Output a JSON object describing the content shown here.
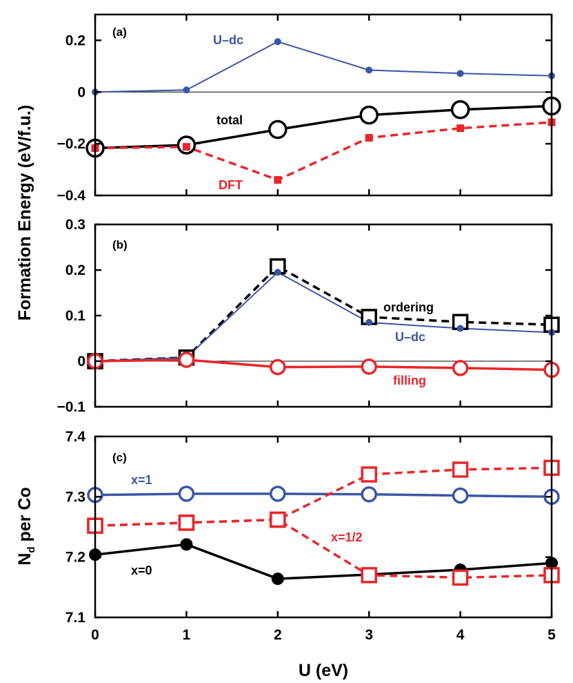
{
  "colors": {
    "blue": "#3b55a6",
    "red": "#e8262b",
    "black": "#000000"
  },
  "figure": {
    "ylabel_top": "Formation Energy (eV/f.u.)",
    "ylabel_bottom_main": "N",
    "ylabel_bottom_sub": "d",
    "ylabel_bottom_rest": " per Co",
    "xlabel": "U (eV)"
  },
  "chart_data": [
    {
      "panel": "(a)",
      "type": "line",
      "title": "",
      "xlabel": "U (eV)",
      "ylabel": "Formation Energy (eV/f.u.)",
      "xlim": [
        0,
        5
      ],
      "ylim": [
        -0.4,
        0.3
      ],
      "xticks": [
        "0",
        "1",
        "2",
        "3",
        "4",
        "5"
      ],
      "yticks": [
        "0.2",
        "0",
        "−0.2",
        "−0.4"
      ],
      "ytick_values": [
        0.2,
        0,
        -0.2,
        -0.4
      ],
      "zero_line": true,
      "x": [
        0,
        1,
        2,
        3,
        4,
        5
      ],
      "series": [
        {
          "name": "U–dc",
          "values": [
            0.0,
            0.008,
            0.195,
            0.085,
            0.072,
            0.063
          ],
          "color": "#3b55a6",
          "marker": "small-dot",
          "dash": "solid"
        },
        {
          "name": "total",
          "values": [
            -0.217,
            -0.205,
            -0.145,
            -0.089,
            -0.068,
            -0.054
          ],
          "color": "#000000",
          "marker": "open-circle",
          "dash": "solid"
        },
        {
          "name": "DFT",
          "values": [
            -0.217,
            -0.212,
            -0.34,
            -0.177,
            -0.14,
            -0.117
          ],
          "color": "#e8262b",
          "marker": "filled-square",
          "dash": "dashed"
        }
      ]
    },
    {
      "panel": "(b)",
      "type": "line",
      "title": "",
      "xlabel": "U (eV)",
      "ylabel": "Formation Energy (eV/f.u.)",
      "xlim": [
        0,
        5
      ],
      "ylim": [
        -0.1,
        0.3
      ],
      "xticks": [
        "0",
        "1",
        "2",
        "3",
        "4",
        "5"
      ],
      "yticks": [
        "0.3",
        "0.2",
        "0.1",
        "0",
        "−0.1"
      ],
      "ytick_values": [
        0.3,
        0.2,
        0.1,
        0,
        -0.1
      ],
      "zero_line": true,
      "x": [
        0,
        1,
        2,
        3,
        4,
        5
      ],
      "series": [
        {
          "name": "ordering",
          "values": [
            0.0,
            0.008,
            0.208,
            0.097,
            0.086,
            0.08
          ],
          "color": "#000000",
          "marker": "open-square",
          "dash": "dashed"
        },
        {
          "name": "U–dc",
          "values": [
            0.0,
            0.008,
            0.195,
            0.085,
            0.072,
            0.063
          ],
          "color": "#3b55a6",
          "marker": "small-dot",
          "dash": "solid"
        },
        {
          "name": "filling",
          "values": [
            0.0,
            0.003,
            -0.013,
            -0.012,
            -0.015,
            -0.019
          ],
          "color": "#e8262b",
          "marker": "open-circle",
          "dash": "solid"
        }
      ]
    },
    {
      "panel": "(c)",
      "type": "line",
      "title": "",
      "xlabel": "U (eV)",
      "ylabel": "N_d per Co",
      "xlim": [
        0,
        5
      ],
      "ylim": [
        7.1,
        7.4
      ],
      "xticks": [
        "0",
        "1",
        "2",
        "3",
        "4",
        "5"
      ],
      "yticks": [
        "7.4",
        "7.3",
        "7.2",
        "7.1"
      ],
      "ytick_values": [
        7.4,
        7.3,
        7.2,
        7.1
      ],
      "zero_line": false,
      "x": [
        0,
        1,
        2,
        3,
        4,
        5
      ],
      "series": [
        {
          "name": "x=1",
          "values": [
            7.303,
            7.305,
            7.305,
            7.304,
            7.302,
            7.3
          ],
          "color": "#3b55a6",
          "marker": "open-circle",
          "dash": "solid"
        },
        {
          "name": "x=0",
          "values": [
            7.204,
            7.221,
            7.164,
            7.171,
            7.179,
            7.19
          ],
          "color": "#000000",
          "marker": "filled-circle",
          "dash": "solid"
        },
        {
          "name": "x=1/2",
          "values": [
            7.252,
            7.257,
            7.262,
            7.337,
            7.345,
            7.348
          ],
          "color": "#e8262b",
          "marker": "open-square",
          "dash": "dashed"
        },
        {
          "name": "",
          "values": [
            7.252,
            7.257,
            7.262,
            7.17,
            7.166,
            7.17
          ],
          "color": "#e8262b",
          "marker": "open-square",
          "dash": "dashed"
        }
      ]
    }
  ]
}
